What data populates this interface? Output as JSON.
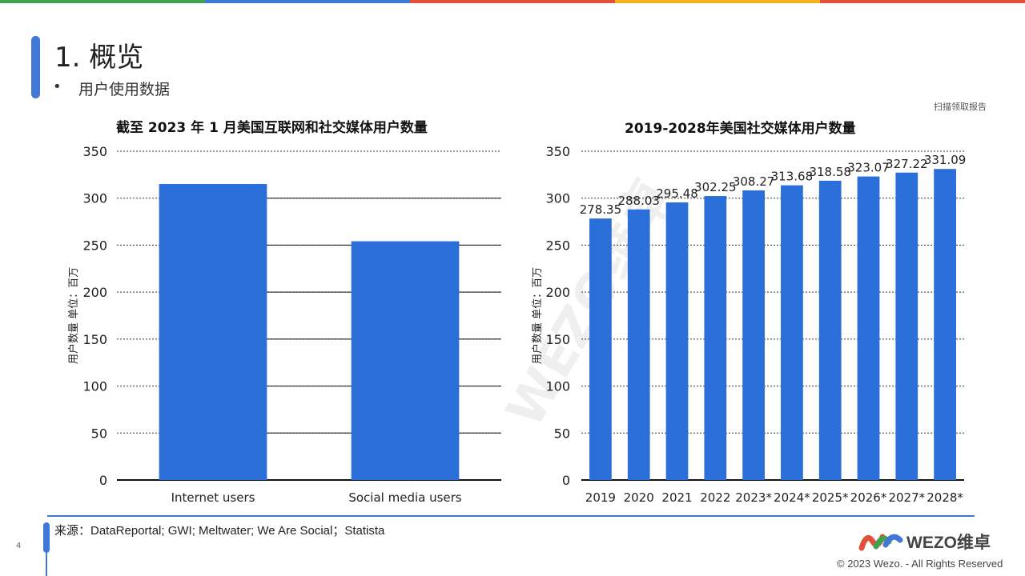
{
  "page": {
    "title": "1. 概览",
    "bullet": "用户使用数据",
    "scan_note": "扫描领取报告",
    "source": "来源：DataReportal; GWI; Meltwater; We Are Social；Statista",
    "page_number": "4",
    "logo_text": "WEZO维卓",
    "copyright": "© 2023 Wezo. - All Rights Reserved",
    "watermark": "WEZO维卓",
    "colors": {
      "accent": "#3f78d6",
      "bar": "#2a6fd9",
      "topbar": [
        "#3fa34d",
        "#3f78d6",
        "#e0503a",
        "#f3b21a",
        "#e0503a"
      ]
    }
  },
  "chart_data": [
    {
      "type": "bar",
      "title": "截至 2023 年 1 月美国互联网和社交媒体用户数量",
      "ylabel": "用户数量 单位：百万",
      "categories": [
        "Internet users",
        "Social media users"
      ],
      "values": [
        315,
        254
      ],
      "yticks": [
        "0",
        "50",
        "100",
        "150",
        "200",
        "250",
        "300",
        "350"
      ],
      "ylim": [
        0,
        350
      ],
      "grid": true
    },
    {
      "type": "bar",
      "title": "2019-2028年美国社交媒体用户数量",
      "ylabel": "用户数量 单位：百万",
      "categories": [
        "2019",
        "2020",
        "2021",
        "2022",
        "2023*",
        "2024*",
        "2025*",
        "2026*",
        "2027*",
        "2028*"
      ],
      "values": [
        278.35,
        288.03,
        295.48,
        302.25,
        308.27,
        313.68,
        318.58,
        323.07,
        327.22,
        331.09
      ],
      "labels": [
        "278.35",
        "288.03",
        "295.48",
        "302.25",
        "308.27",
        "313.68",
        "318.58",
        "323.07",
        "327.22",
        "331.09"
      ],
      "yticks": [
        "0",
        "50",
        "100",
        "150",
        "200",
        "250",
        "300",
        "350"
      ],
      "ylim": [
        0,
        350
      ],
      "grid": true
    }
  ]
}
